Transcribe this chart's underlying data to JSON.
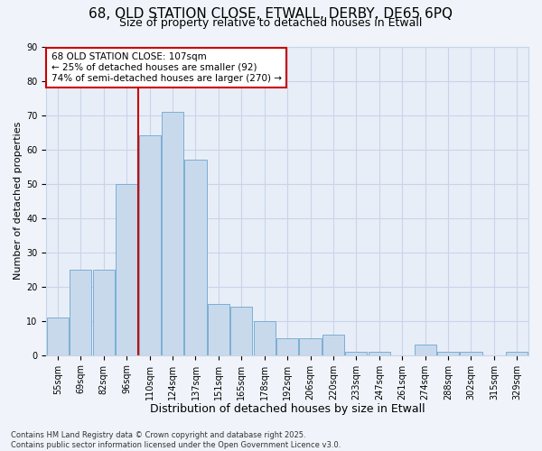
{
  "title_line1": "68, OLD STATION CLOSE, ETWALL, DERBY, DE65 6PQ",
  "title_line2": "Size of property relative to detached houses in Etwall",
  "xlabel": "Distribution of detached houses by size in Etwall",
  "ylabel": "Number of detached properties",
  "categories": [
    "55sqm",
    "69sqm",
    "82sqm",
    "96sqm",
    "110sqm",
    "124sqm",
    "137sqm",
    "151sqm",
    "165sqm",
    "178sqm",
    "192sqm",
    "206sqm",
    "220sqm",
    "233sqm",
    "247sqm",
    "261sqm",
    "274sqm",
    "288sqm",
    "302sqm",
    "315sqm",
    "329sqm"
  ],
  "values": [
    11,
    25,
    25,
    50,
    64,
    71,
    57,
    15,
    14,
    10,
    5,
    5,
    6,
    1,
    1,
    0,
    3,
    1,
    1,
    0,
    1
  ],
  "bar_color": "#c8d9ec",
  "bar_edge_color": "#7aafd4",
  "vline_position": 4,
  "annotation_text": "68 OLD STATION CLOSE: 107sqm\n← 25% of detached houses are smaller (92)\n74% of semi-detached houses are larger (270) →",
  "annotation_box_facecolor": "#ffffff",
  "annotation_box_edgecolor": "#cc0000",
  "vline_color": "#cc0000",
  "grid_color": "#c8d5e8",
  "background_color": "#f0f4fa",
  "plot_bg_color": "#e8eef8",
  "footer_text": "Contains HM Land Registry data © Crown copyright and database right 2025.\nContains public sector information licensed under the Open Government Licence v3.0.",
  "ylim": [
    0,
    90
  ],
  "yticks": [
    0,
    10,
    20,
    30,
    40,
    50,
    60,
    70,
    80,
    90
  ],
  "title1_fontsize": 11,
  "title2_fontsize": 9,
  "xlabel_fontsize": 9,
  "ylabel_fontsize": 8,
  "tick_fontsize": 7,
  "footer_fontsize": 6,
  "annot_fontsize": 7.5
}
